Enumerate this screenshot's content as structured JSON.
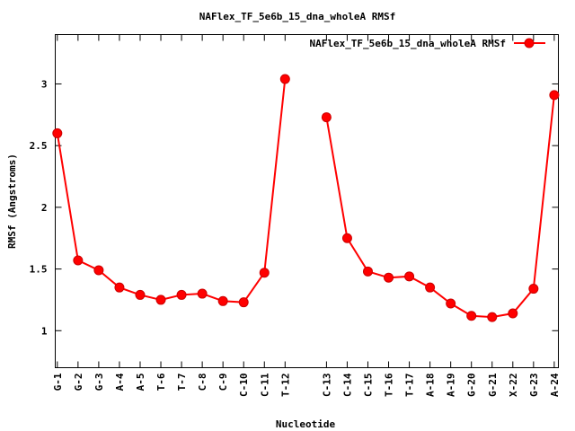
{
  "chart_data": {
    "type": "line",
    "title": "NAFlex_TF_5e6b_15_dna_wholeA RMSf",
    "xlabel": "Nucleotide",
    "ylabel": "RMSf (Angstroms)",
    "ylim": [
      0.7,
      3.4
    ],
    "yticks": [
      1,
      1.5,
      2,
      2.5,
      3
    ],
    "ytick_labels": [
      "1",
      "1.5",
      "2",
      "2.5",
      "3"
    ],
    "categories": [
      "G-1",
      "G-2",
      "G-3",
      "A-4",
      "A-5",
      "T-6",
      "T-7",
      "C-8",
      "C-9",
      "C-10",
      "C-11",
      "T-12",
      "C-13",
      "C-14",
      "C-15",
      "T-16",
      "T-17",
      "A-18",
      "A-19",
      "G-20",
      "G-21",
      "X-22",
      "G-23",
      "A-24"
    ],
    "x": [
      1,
      2,
      3,
      4,
      5,
      6,
      7,
      8,
      9,
      10,
      11,
      12,
      14,
      15,
      16,
      17,
      18,
      19,
      20,
      21,
      22,
      23,
      24,
      25
    ],
    "xlim": [
      0.9,
      25.2
    ],
    "segments": [
      [
        0,
        11
      ],
      [
        12,
        23
      ]
    ],
    "legend_position": "top-right",
    "grid": false,
    "series": [
      {
        "name": "NAFlex_TF_5e6b_15_dna_wholeA RMSf",
        "color": "#ff0000",
        "values": [
          2.6,
          1.57,
          1.49,
          1.35,
          1.29,
          1.25,
          1.29,
          1.3,
          1.24,
          1.23,
          1.47,
          3.04,
          2.73,
          1.75,
          1.48,
          1.43,
          1.44,
          1.35,
          1.22,
          1.12,
          1.11,
          1.14,
          1.34,
          2.91
        ]
      }
    ]
  }
}
